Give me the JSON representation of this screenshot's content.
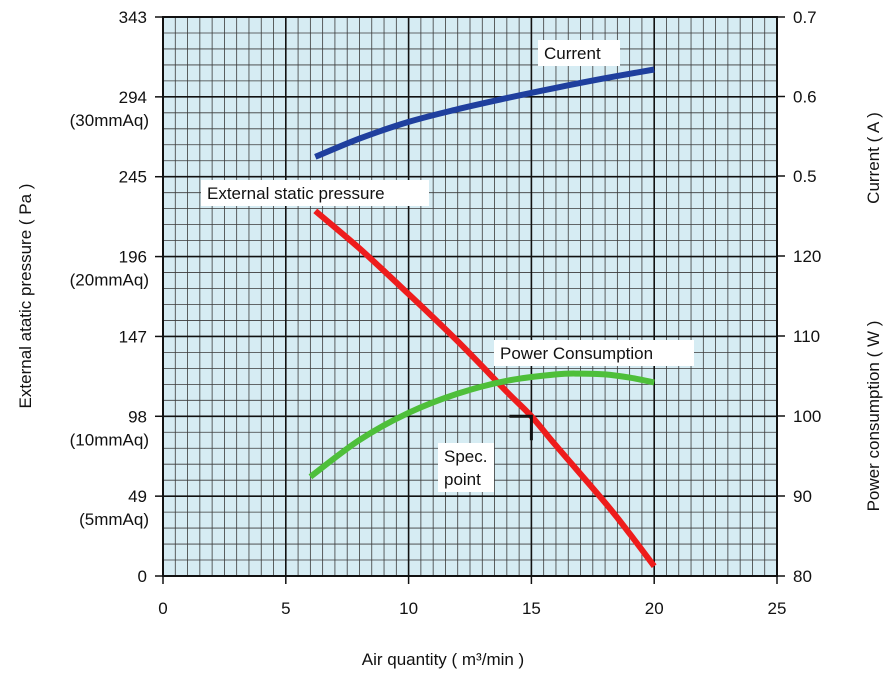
{
  "chart_data": {
    "type": "line",
    "xlabel": "Air quantity ( m³/min )",
    "x_ticks": [
      "0",
      "5",
      "10",
      "15",
      "20",
      "25"
    ],
    "xlim": [
      0,
      25
    ],
    "y_left": {
      "label": "External atatic pressure ( Pa )",
      "lim": [
        0,
        343
      ],
      "ticks": [
        {
          "value": 0,
          "label": "0",
          "sub": ""
        },
        {
          "value": 49,
          "label": "49",
          "sub": "(5mmAq)"
        },
        {
          "value": 98,
          "label": "98",
          "sub": "(10mmAq)"
        },
        {
          "value": 147,
          "label": "147",
          "sub": ""
        },
        {
          "value": 196,
          "label": "196",
          "sub": "(20mmAq)"
        },
        {
          "value": 245,
          "label": "245",
          "sub": ""
        },
        {
          "value": 294,
          "label": "294",
          "sub": "(30mmAq)"
        },
        {
          "value": 343,
          "label": "343",
          "sub": ""
        }
      ]
    },
    "y_right_current": {
      "label": "Current ( A )",
      "lim": [
        0.5,
        0.7
      ],
      "ticks": [
        "0.5",
        "0.6",
        "0.7"
      ]
    },
    "y_right_power": {
      "label": "Power consumption ( W )",
      "lim": [
        80,
        120
      ],
      "ticks": [
        "80",
        "90",
        "100",
        "110",
        "120"
      ]
    },
    "grid": true,
    "series": [
      {
        "name": "Current",
        "axis": "current",
        "color": "#1f3f9e",
        "x": [
          6.2,
          8,
          10,
          12,
          14,
          16,
          18,
          20
        ],
        "y": [
          0.524,
          0.547,
          0.568,
          0.584,
          0.598,
          0.611,
          0.623,
          0.634
        ]
      },
      {
        "name": "External static pressure",
        "axis": "pressure",
        "color": "#ee1c1c",
        "x": [
          6.2,
          8,
          10,
          12,
          14,
          15,
          16,
          18,
          19,
          20
        ],
        "y": [
          224,
          201,
          173,
          144,
          113,
          98,
          80,
          45,
          26,
          6
        ]
      },
      {
        "name": "Power Consumption",
        "axis": "power",
        "color": "#4ebf3a",
        "x": [
          6,
          8,
          10,
          12,
          14,
          16,
          17,
          18,
          19,
          20
        ],
        "y": [
          92.4,
          97.0,
          100.4,
          102.8,
          104.4,
          105.2,
          105.3,
          105.2,
          104.8,
          104.2
        ]
      }
    ],
    "annotations": {
      "current_label": "Current",
      "pressure_label": "External static pressure",
      "power_label": "Power Consumption",
      "spec_line1": "Spec.",
      "spec_line2": "point",
      "spec_point": {
        "x": 15,
        "y": 98
      }
    }
  }
}
